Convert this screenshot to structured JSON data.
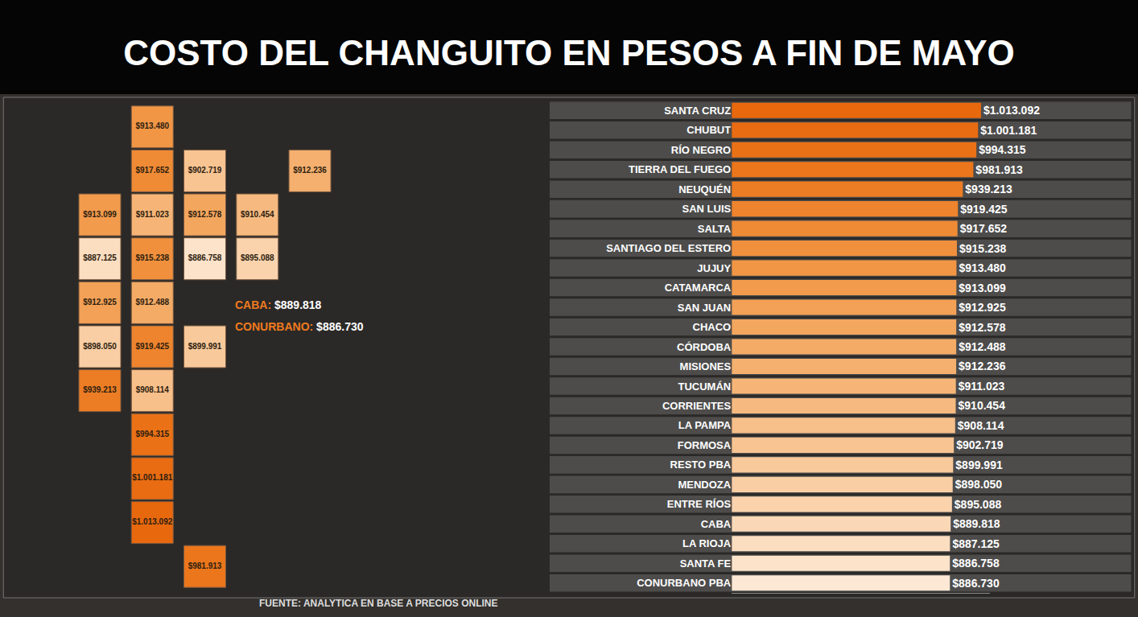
{
  "chart_data": {
    "type": "bar",
    "title": "COSTO DEL CHANGUITO EN PESOS A FIN DE MAYO",
    "orientation": "horizontal",
    "categories": [
      "SANTA CRUZ",
      "CHUBUT",
      "RÍO NEGRO",
      "TIERRA DEL FUEGO",
      "NEUQUÉN",
      "SAN LUIS",
      "SALTA",
      "SANTIAGO DEL ESTERO",
      "JUJUY",
      "CATAMARCA",
      "SAN JUAN",
      "CHACO",
      "CÓRDOBA",
      "MISIONES",
      "TUCUMÁN",
      "CORRIENTES",
      "LA PAMPA",
      "FORMOSA",
      "RESTO PBA",
      "MENDOZA",
      "ENTRE RÍOS",
      "CABA",
      "LA RIOJA",
      "SANTA FE",
      "CONURBANO PBA"
    ],
    "values": [
      1013092,
      1001181,
      994315,
      981913,
      939213,
      919425,
      917652,
      915238,
      913480,
      913099,
      912925,
      912578,
      912488,
      912236,
      911023,
      910454,
      908114,
      902719,
      899991,
      898050,
      895088,
      889818,
      887125,
      886758,
      886730
    ],
    "value_labels": [
      "$1.013.092",
      "$1.001.181",
      "$994.315",
      "$981.913",
      "$939.213",
      "$919.425",
      "$917.652",
      "$915.238",
      "$913.480",
      "$913.099",
      "$912.925",
      "$912.578",
      "$912.488",
      "$912.236",
      "$911.023",
      "$910.454",
      "$908.114",
      "$902.719",
      "$899.991",
      "$898.050",
      "$895.088",
      "$889.818",
      "$887.125",
      "$886.758",
      "$886.730"
    ],
    "colors": [
      "#e8680e",
      "#e96c12",
      "#ea7116",
      "#eb761b",
      "#ec7d24",
      "#ee842d",
      "#ef8a35",
      "#f0903d",
      "#f19645",
      "#f29b4d",
      "#f3a156",
      "#f3a65e",
      "#f4ab66",
      "#f5b06f",
      "#f6b577",
      "#f6ba80",
      "#f7bf89",
      "#f8c492",
      "#f8c99b",
      "#f9cea4",
      "#fad3ad",
      "#fad8b7",
      "#fbddc0",
      "#fce3ca",
      "#fce8d4"
    ],
    "xlim": [
      0,
      1050000
    ],
    "xticks": [],
    "grid": false,
    "data_labels": true,
    "tick_labels": "y",
    "annotations": [
      "CABA: $889.818",
      "CONURBANO: $886.730"
    ],
    "source": "FUENTE: ANALYTICA EN BASE A PRECIOS ONLINE"
  }
}
